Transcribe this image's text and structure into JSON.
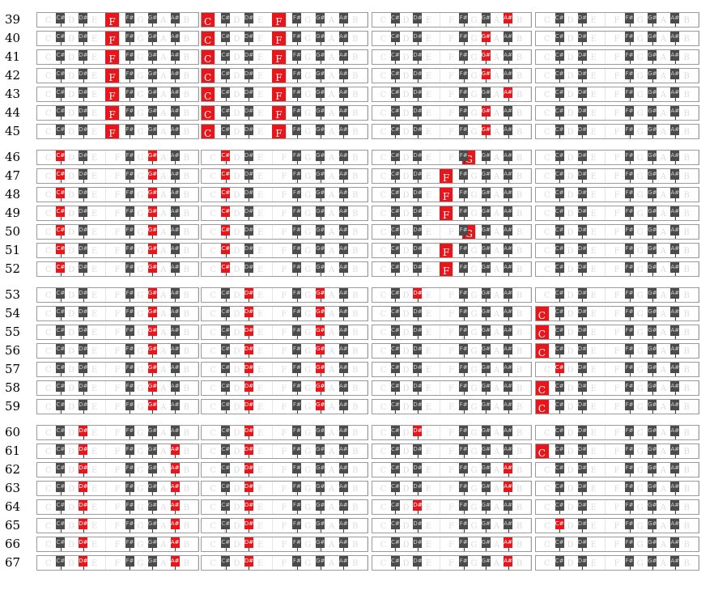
{
  "keyboard": {
    "white_keys": [
      "C",
      "D",
      "E",
      "F",
      "G",
      "A",
      "B"
    ],
    "black_keys": [
      "C#",
      "D#",
      "F#",
      "G#",
      "A#"
    ],
    "highlight_color": "#e8161b",
    "black_key_color": "#4b4b4b"
  },
  "groups": [
    {
      "rows": [
        {
          "n": "39",
          "notes": [
            [
              "F"
            ],
            [
              "C",
              "F"
            ],
            [
              "A#"
            ],
            []
          ]
        },
        {
          "n": "40",
          "notes": [
            [
              "F"
            ],
            [
              "C",
              "F"
            ],
            [
              "G#"
            ],
            []
          ]
        },
        {
          "n": "41",
          "notes": [
            [
              "F"
            ],
            [
              "C",
              "F"
            ],
            [
              "G#"
            ],
            []
          ]
        },
        {
          "n": "42",
          "notes": [
            [
              "F"
            ],
            [
              "C",
              "F"
            ],
            [
              "G#"
            ],
            []
          ]
        },
        {
          "n": "43",
          "notes": [
            [
              "F"
            ],
            [
              "C",
              "F"
            ],
            [
              "A#"
            ],
            []
          ]
        },
        {
          "n": "44",
          "notes": [
            [
              "F"
            ],
            [
              "C",
              "F"
            ],
            [
              "G#"
            ],
            []
          ]
        },
        {
          "n": "45",
          "notes": [
            [
              "F"
            ],
            [
              "C",
              "F"
            ],
            [
              "G#"
            ],
            []
          ]
        }
      ]
    },
    {
      "rows": [
        {
          "n": "46",
          "notes": [
            [
              "C#",
              "G#"
            ],
            [
              "C#"
            ],
            [
              "G"
            ],
            []
          ]
        },
        {
          "n": "47",
          "notes": [
            [
              "C#",
              "G#"
            ],
            [
              "C#"
            ],
            [
              "F"
            ],
            []
          ]
        },
        {
          "n": "48",
          "notes": [
            [
              "C#",
              "G#"
            ],
            [
              "C#"
            ],
            [
              "F"
            ],
            []
          ]
        },
        {
          "n": "49",
          "notes": [
            [
              "C#",
              "G#"
            ],
            [
              "C#"
            ],
            [
              "F"
            ],
            []
          ]
        },
        {
          "n": "50",
          "notes": [
            [
              "C#",
              "G#"
            ],
            [
              "C#"
            ],
            [
              "G"
            ],
            []
          ]
        },
        {
          "n": "51",
          "notes": [
            [
              "C#",
              "G#"
            ],
            [
              "C#"
            ],
            [
              "F"
            ],
            []
          ]
        },
        {
          "n": "52",
          "notes": [
            [
              "C#",
              "G#"
            ],
            [
              "C#"
            ],
            [
              "F"
            ],
            []
          ]
        }
      ]
    },
    {
      "rows": [
        {
          "n": "53",
          "notes": [
            [
              "G#"
            ],
            [
              "D#",
              "G#"
            ],
            [
              "D#"
            ],
            []
          ]
        },
        {
          "n": "54",
          "notes": [
            [
              "G#"
            ],
            [
              "D#",
              "G#"
            ],
            [],
            [
              "C"
            ]
          ]
        },
        {
          "n": "55",
          "notes": [
            [
              "G#"
            ],
            [
              "D#",
              "G#"
            ],
            [],
            [
              "C"
            ]
          ]
        },
        {
          "n": "56",
          "notes": [
            [
              "G#"
            ],
            [
              "D#",
              "G#"
            ],
            [],
            [
              "C"
            ]
          ]
        },
        {
          "n": "57",
          "notes": [
            [
              "G#"
            ],
            [
              "D#",
              "G#"
            ],
            [],
            [
              "C#"
            ]
          ]
        },
        {
          "n": "58",
          "notes": [
            [
              "G#"
            ],
            [
              "D#",
              "G#"
            ],
            [],
            [
              "C"
            ]
          ]
        },
        {
          "n": "59",
          "notes": [
            [
              "G#"
            ],
            [
              "D#",
              "G#"
            ],
            [],
            [
              "C"
            ]
          ]
        }
      ]
    },
    {
      "rows": [
        {
          "n": "60",
          "notes": [
            [
              "D#"
            ],
            [
              "D#"
            ],
            [
              "D#"
            ],
            []
          ]
        },
        {
          "n": "61",
          "notes": [
            [
              "D#",
              "A#"
            ],
            [
              "D#"
            ],
            [],
            [
              "C"
            ]
          ]
        },
        {
          "n": "62",
          "notes": [
            [
              "D#",
              "A#"
            ],
            [
              "D#"
            ],
            [
              "A#"
            ],
            []
          ]
        },
        {
          "n": "63",
          "notes": [
            [
              "D#",
              "A#"
            ],
            [
              "D#"
            ],
            [
              "A#"
            ],
            []
          ]
        },
        {
          "n": "64",
          "notes": [
            [
              "D#",
              "A#"
            ],
            [
              "D#"
            ],
            [
              "D#"
            ],
            []
          ]
        },
        {
          "n": "65",
          "notes": [
            [
              "D#",
              "A#"
            ],
            [
              "D#"
            ],
            [],
            [
              "C#"
            ]
          ]
        },
        {
          "n": "66",
          "notes": [
            [
              "D#",
              "A#"
            ],
            [
              "D#"
            ],
            [
              "A#"
            ],
            []
          ]
        },
        {
          "n": "67",
          "notes": [
            [
              "D#",
              "A#"
            ],
            [
              "D#"
            ],
            [
              "A#"
            ],
            []
          ]
        }
      ]
    }
  ]
}
